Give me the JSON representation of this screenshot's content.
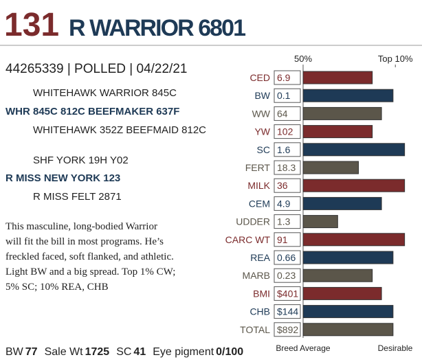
{
  "header": {
    "lot": "131",
    "name": "R WARRIOR 6801"
  },
  "id_line": "44265339 | POLLED | 04/22/21",
  "pedigree": {
    "sire_sire": "WHITEHAWK WARRIOR 845C",
    "sire": "WHR 845C 812C BEEFMAKER 637F",
    "sire_dam": "WHITEHAWK 352Z BEEFMAID 812C",
    "dam_sire": "SHF YORK 19H Y02",
    "dam": "R MISS NEW YORK 123",
    "dam_dam": "R MISS FELT 2871"
  },
  "description": [
    "This masculine, long-bodied Warrior",
    "will fit the bill in most programs. He’s",
    "freckled faced, soft flanked, and athletic.",
    "Light BW and a big spread. Top 1% CW;",
    "5% SC; 10% REA, CHB"
  ],
  "stats": [
    {
      "label": "BW",
      "value": "77"
    },
    {
      "label": "Sale Wt",
      "value": "1725"
    },
    {
      "label": "SC",
      "value": "41"
    },
    {
      "label": "Eye pigment",
      "value": "0/100"
    }
  ],
  "chart_data": {
    "type": "bar",
    "categories": [
      "CED",
      "BW",
      "WW",
      "YW",
      "SC",
      "FERT",
      "MILK",
      "CEM",
      "UDDER",
      "CARC WT",
      "REA",
      "MARB",
      "BMI",
      "CHB",
      "TOTAL"
    ],
    "epd": [
      "6.9",
      "0.1",
      "64",
      "102",
      "1.6",
      "18.3",
      "36",
      "4.9",
      "1.3",
      "91",
      "0.66",
      "0.23",
      "$401",
      "$144",
      "$892"
    ],
    "values": [
      80,
      89,
      84,
      80,
      94,
      74,
      94,
      84,
      65,
      94,
      89,
      80,
      84,
      89,
      89
    ],
    "colors": [
      "#7b2b2c",
      "#1e3a56",
      "#5b564a",
      "#7b2b2c",
      "#1e3a56",
      "#5b564a",
      "#7b2b2c",
      "#1e3a56",
      "#5b564a",
      "#7b2b2c",
      "#1e3a56",
      "#5b564a",
      "#7b2b2c",
      "#1e3a56",
      "#5b564a"
    ],
    "xlim": [
      50,
      95
    ],
    "xticks": [
      {
        "value": 50,
        "label": "50%"
      },
      {
        "value": 90,
        "label": "Top 10%"
      }
    ],
    "x_label_left": "Breed Average",
    "x_label_right": "Desirable"
  }
}
